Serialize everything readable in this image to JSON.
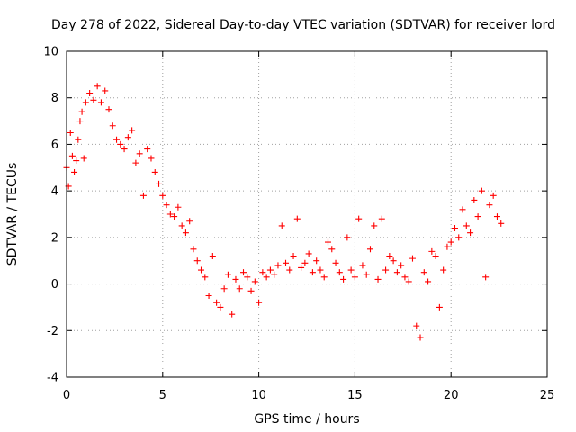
{
  "chart_data": {
    "type": "scatter",
    "title": "Day 278 of 2022, Sidereal Day-to-day VTEC variation (SDTVAR) for receiver lord",
    "xlabel": "GPS time / hours",
    "ylabel": "SDTVAR / TECUs",
    "xlim": [
      0,
      25
    ],
    "ylim": [
      -4,
      10
    ],
    "xticks": [
      "0",
      "5",
      "10",
      "15",
      "20",
      "25"
    ],
    "yticks": [
      "-4",
      "-2",
      "0",
      "2",
      "4",
      "6",
      "8",
      "10"
    ],
    "grid": true,
    "marker": "+",
    "color": "#ff0000",
    "series": [
      {
        "name": "SDTVAR",
        "x": [
          0.0,
          0.1,
          0.2,
          0.3,
          0.4,
          0.5,
          0.6,
          0.7,
          0.8,
          0.9,
          1.0,
          1.2,
          1.4,
          1.6,
          1.8,
          2.0,
          2.2,
          2.4,
          2.6,
          2.8,
          3.0,
          3.2,
          3.4,
          3.6,
          3.8,
          4.0,
          4.2,
          4.4,
          4.6,
          4.8,
          5.0,
          5.2,
          5.4,
          5.6,
          5.8,
          6.0,
          6.2,
          6.4,
          6.6,
          6.8,
          7.0,
          7.2,
          7.4,
          7.6,
          7.8,
          8.0,
          8.2,
          8.4,
          8.6,
          8.8,
          9.0,
          9.2,
          9.4,
          9.6,
          9.8,
          10.0,
          10.2,
          10.4,
          10.6,
          10.8,
          11.0,
          11.2,
          11.4,
          11.6,
          11.8,
          12.0,
          12.2,
          12.4,
          12.6,
          12.8,
          13.0,
          13.2,
          13.4,
          13.6,
          13.8,
          14.0,
          14.2,
          14.4,
          14.6,
          14.8,
          15.0,
          15.2,
          15.4,
          15.6,
          15.8,
          16.0,
          16.2,
          16.4,
          16.6,
          16.8,
          17.0,
          17.2,
          17.4,
          17.6,
          17.8,
          18.0,
          18.2,
          18.4,
          18.6,
          18.8,
          19.0,
          19.2,
          19.4,
          19.6,
          19.8,
          20.0,
          20.2,
          20.4,
          20.6,
          20.8,
          21.0,
          21.2,
          21.4,
          21.6,
          21.8,
          22.0,
          22.2,
          22.4,
          22.6
        ],
        "y": [
          5.0,
          4.2,
          6.5,
          5.5,
          4.8,
          5.3,
          6.2,
          7.0,
          7.4,
          5.4,
          7.8,
          8.2,
          7.9,
          8.5,
          7.8,
          8.3,
          7.5,
          6.8,
          6.2,
          6.0,
          5.8,
          6.3,
          6.6,
          5.2,
          5.6,
          3.8,
          5.8,
          5.4,
          4.8,
          4.3,
          3.8,
          3.4,
          3.0,
          2.9,
          3.3,
          2.5,
          2.2,
          2.7,
          1.5,
          1.0,
          0.6,
          0.3,
          -0.5,
          1.2,
          -0.8,
          -1.0,
          -0.2,
          0.4,
          -1.3,
          0.2,
          -0.2,
          0.5,
          0.3,
          -0.3,
          0.1,
          -0.8,
          0.5,
          0.3,
          0.6,
          0.4,
          0.8,
          2.5,
          0.9,
          0.6,
          1.2,
          2.8,
          0.7,
          0.9,
          1.3,
          0.5,
          1.0,
          0.6,
          0.3,
          1.8,
          1.5,
          0.9,
          0.5,
          0.2,
          2.0,
          0.6,
          0.3,
          2.8,
          0.8,
          0.4,
          1.5,
          2.5,
          0.2,
          2.8,
          0.6,
          1.2,
          1.0,
          0.5,
          0.8,
          0.3,
          0.1,
          1.1,
          -1.8,
          -2.3,
          0.5,
          0.1,
          1.4,
          1.2,
          -1.0,
          0.6,
          1.6,
          1.8,
          2.4,
          2.0,
          3.2,
          2.5,
          2.2,
          3.6,
          2.9,
          4.0,
          0.3,
          3.4,
          3.8,
          2.9,
          2.6
        ]
      }
    ]
  }
}
